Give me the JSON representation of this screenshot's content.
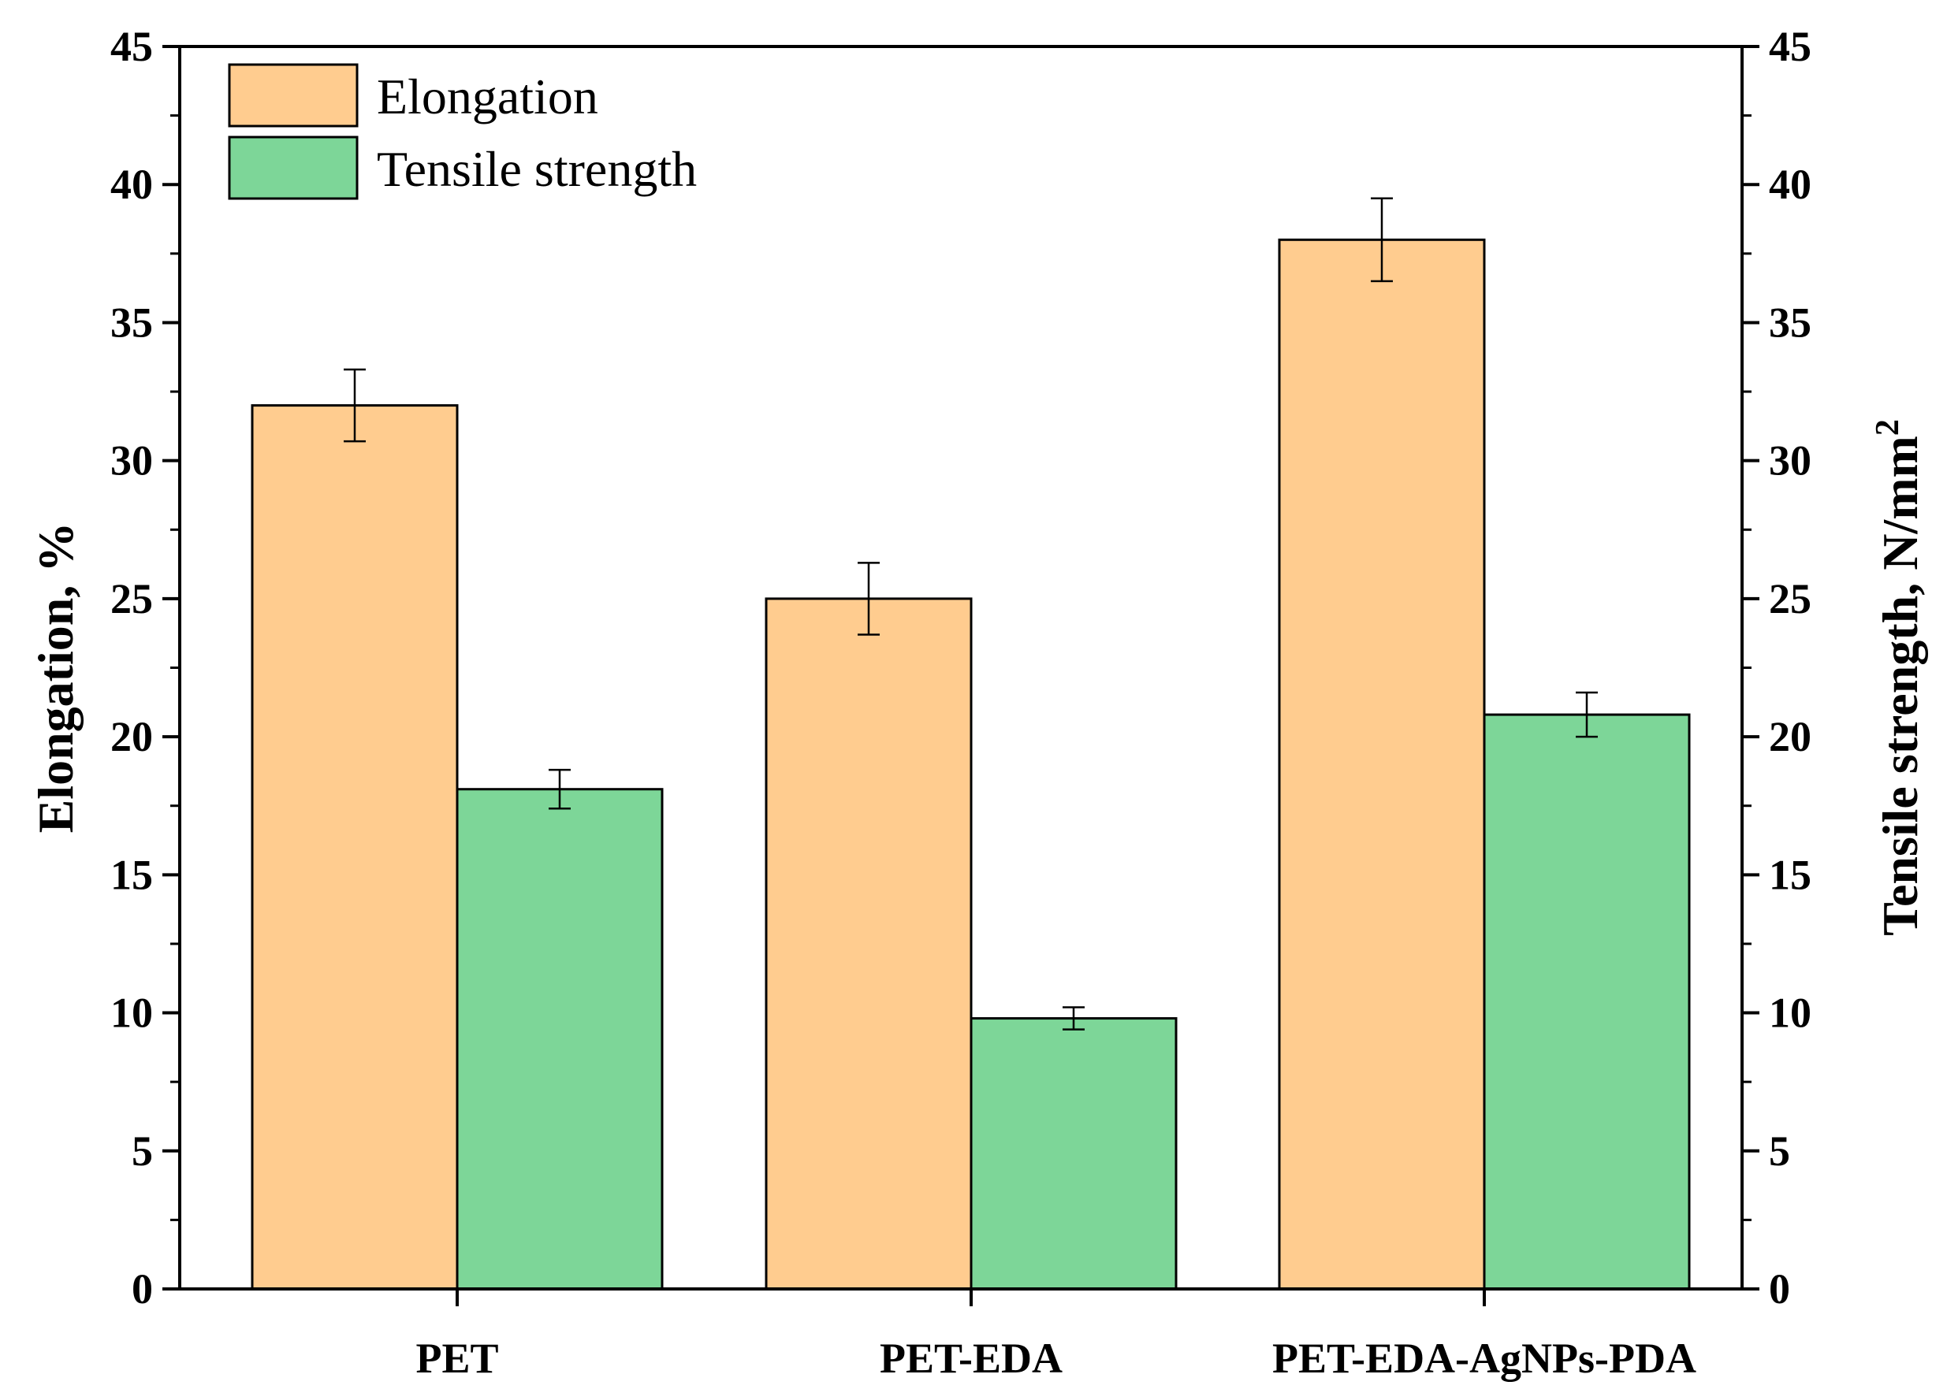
{
  "chart_data": {
    "type": "bar",
    "categories": [
      "PET",
      "PET-EDA",
      "PET-EDA-AgNPs-PDA"
    ],
    "series": [
      {
        "name": "Elongation",
        "axis": "left",
        "color": "#FFCC8F",
        "values": [
          32.0,
          25.0,
          38.0
        ],
        "errors": [
          1.3,
          1.3,
          1.5
        ]
      },
      {
        "name": "Tensile strength",
        "axis": "right",
        "color": "#7DD698",
        "values": [
          18.1,
          9.8,
          20.8
        ],
        "errors": [
          0.7,
          0.4,
          0.8
        ]
      }
    ],
    "ylabel": "Elongation, %",
    "y2label_main": "Tensile strength, N/mm",
    "y2label_sup": "2",
    "ylim": [
      0,
      45
    ],
    "y2lim": [
      0,
      45
    ],
    "yticks": [
      0,
      5,
      10,
      15,
      20,
      25,
      30,
      35,
      40,
      45
    ],
    "legend_position": "top-left"
  }
}
